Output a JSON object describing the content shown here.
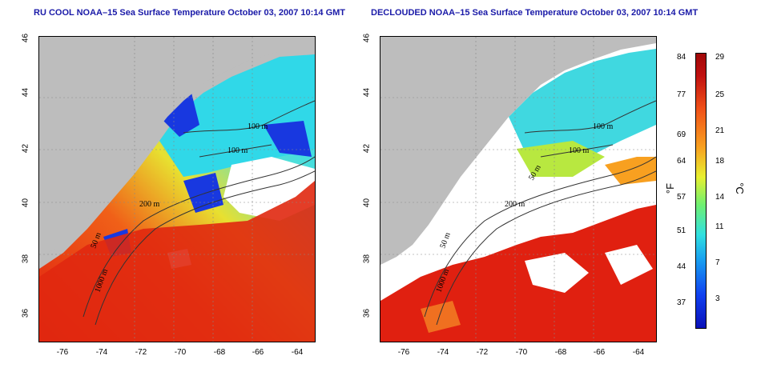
{
  "left_title": "RU COOL NOAA–15 Sea Surface Temperature October 03, 2007 10:14 GMT",
  "right_title": "DECLOUDED NOAA–15 Sea Surface Temperature October 03, 2007 10:14 GMT",
  "y_ticks": [
    "46",
    "44",
    "42",
    "40",
    "38",
    "36"
  ],
  "x_ticks": [
    "-76",
    "-74",
    "-72",
    "-70",
    "-68",
    "-66",
    "-64"
  ],
  "contour_labels_left": [
    "100 m",
    "100 m",
    "200 m",
    "50 m",
    "1000 m"
  ],
  "contour_labels_right": [
    "100 m",
    "100 m",
    "50 m",
    "200 m",
    "50 m",
    "1000 m"
  ],
  "colorbar": {
    "fahrenheit_label": "°F",
    "celsius_label": "°C",
    "fahrenheit_ticks": [
      "84",
      "77",
      "69",
      "64",
      "57",
      "51",
      "44",
      "37"
    ],
    "celsius_ticks": [
      "29",
      "25",
      "21",
      "18",
      "14",
      "11",
      "7",
      "3"
    ]
  },
  "colors": {
    "title": "#1a1aa8",
    "land": "#bdbdbd",
    "cloud": "#ffffff",
    "warm": "#d81810",
    "cool": "#30d0e8"
  }
}
